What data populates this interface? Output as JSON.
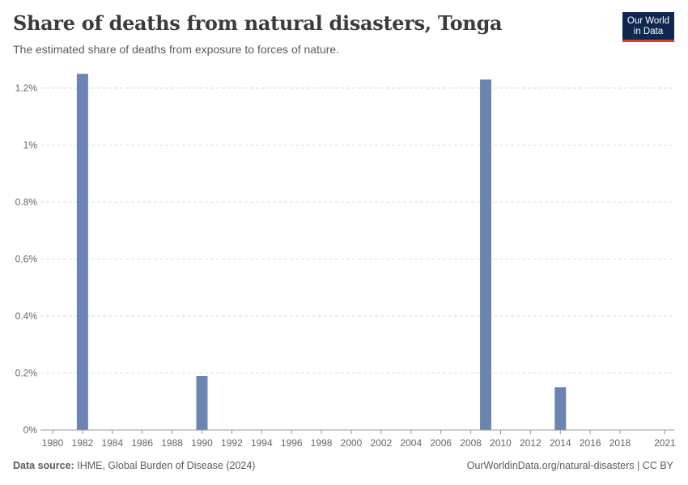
{
  "header": {
    "title": "Share of deaths from natural disasters, Tonga",
    "subtitle": "The estimated share of deaths from exposure to forces of nature."
  },
  "logo": {
    "line1": "Our World",
    "line2": "in Data"
  },
  "footer": {
    "source_label": "Data source:",
    "source_text": "IHME, Global Burden of Disease (2024)",
    "credit": "OurWorldinData.org/natural-disasters | CC BY"
  },
  "colors": {
    "bar": "#6b84b0",
    "grid": "#dddddd",
    "axis": "#999999"
  },
  "chart_data": {
    "type": "bar",
    "title": "Share of deaths from natural disasters, Tonga",
    "xlabel": "",
    "ylabel": "",
    "unit": "%",
    "x_range": [
      1980,
      2021
    ],
    "ylim": [
      0,
      1.3
    ],
    "y_ticks": [
      0,
      0.2,
      0.4,
      0.6,
      0.8,
      1,
      1.2
    ],
    "y_tick_labels": [
      "0%",
      "0.2%",
      "0.4%",
      "0.6%",
      "0.8%",
      "1%",
      "1.2%"
    ],
    "x_ticks": [
      1980,
      1982,
      1984,
      1986,
      1988,
      1990,
      1992,
      1994,
      1996,
      1998,
      2000,
      2002,
      2004,
      2006,
      2008,
      2010,
      2012,
      2014,
      2016,
      2018,
      2021
    ],
    "x_tick_labels": [
      "1980",
      "1982",
      "1984",
      "1986",
      "1988",
      "1990",
      "1992",
      "1994",
      "1996",
      "1998",
      "2000",
      "2002",
      "2004",
      "2006",
      "2008",
      "2010",
      "2012",
      "2014",
      "2016",
      "2018",
      "2021"
    ],
    "grid": true,
    "series": [
      {
        "name": "Tonga",
        "points": [
          {
            "year": 1982,
            "value": 1.25
          },
          {
            "year": 1990,
            "value": 0.19
          },
          {
            "year": 2009,
            "value": 1.23
          },
          {
            "year": 2014,
            "value": 0.15
          }
        ]
      }
    ]
  }
}
